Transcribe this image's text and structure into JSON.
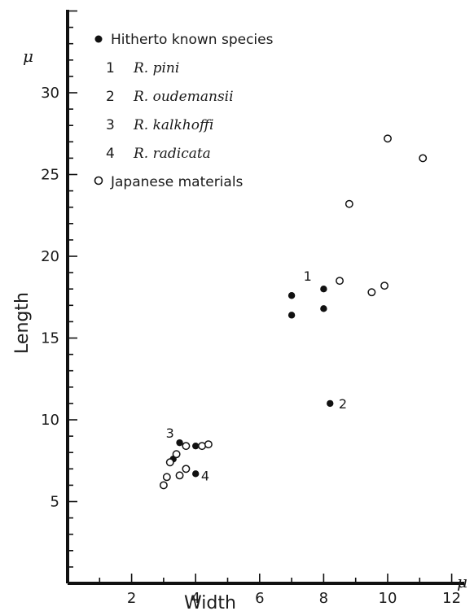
{
  "chart_data": {
    "type": "scatter",
    "xlabel": "Width",
    "ylabel": "Length",
    "x_unit": "μ",
    "y_unit": "μ",
    "xlim": [
      0,
      13
    ],
    "ylim": [
      0,
      35
    ],
    "x_ticks": [
      2,
      4,
      6,
      8,
      10,
      12
    ],
    "x_tick_labels": [
      "2",
      "4",
      "6",
      "8",
      "10",
      "12"
    ],
    "y_ticks": [
      5,
      10,
      15,
      20,
      25,
      30
    ],
    "y_tick_labels": [
      "5",
      "10",
      "15",
      "20",
      "25",
      "30"
    ],
    "legend": {
      "placement": "top-left",
      "known_label": "Hitherto known species",
      "japanese_label": "Japanese materials",
      "species": [
        {
          "num": "1",
          "name": "R. pini"
        },
        {
          "num": "2",
          "name": "R. oudemansii"
        },
        {
          "num": "3",
          "name": "R. kalkhoffi"
        },
        {
          "num": "4",
          "name": "R. radicata"
        }
      ]
    },
    "series": [
      {
        "name": "Hitherto known species",
        "marker": "filled-circle",
        "points": [
          {
            "x": 7.0,
            "y": 17.6
          },
          {
            "x": 7.0,
            "y": 16.4
          },
          {
            "x": 8.0,
            "y": 18.0
          },
          {
            "x": 8.0,
            "y": 16.8
          },
          {
            "x": 8.2,
            "y": 11.0
          },
          {
            "x": 3.5,
            "y": 8.6
          },
          {
            "x": 4.0,
            "y": 8.4
          },
          {
            "x": 3.3,
            "y": 7.6
          },
          {
            "x": 4.0,
            "y": 6.7
          }
        ]
      },
      {
        "name": "Japanese materials",
        "marker": "open-circle",
        "points": [
          {
            "x": 10.0,
            "y": 27.2
          },
          {
            "x": 11.1,
            "y": 26.0
          },
          {
            "x": 8.8,
            "y": 23.2
          },
          {
            "x": 8.5,
            "y": 18.5
          },
          {
            "x": 9.5,
            "y": 17.8
          },
          {
            "x": 9.9,
            "y": 18.2
          },
          {
            "x": 3.7,
            "y": 8.4
          },
          {
            "x": 4.2,
            "y": 8.4
          },
          {
            "x": 4.4,
            "y": 8.5
          },
          {
            "x": 3.4,
            "y": 7.9
          },
          {
            "x": 3.2,
            "y": 7.4
          },
          {
            "x": 3.7,
            "y": 7.0
          },
          {
            "x": 3.5,
            "y": 6.6
          },
          {
            "x": 3.1,
            "y": 6.5
          },
          {
            "x": 3.0,
            "y": 6.0
          }
        ]
      }
    ],
    "annotations": [
      {
        "text": "1",
        "x": 7.5,
        "y": 18.5
      },
      {
        "text": "2",
        "x": 8.6,
        "y": 10.7
      },
      {
        "text": "3",
        "x": 3.2,
        "y": 8.9
      },
      {
        "text": "4",
        "x": 4.3,
        "y": 6.3
      }
    ]
  }
}
